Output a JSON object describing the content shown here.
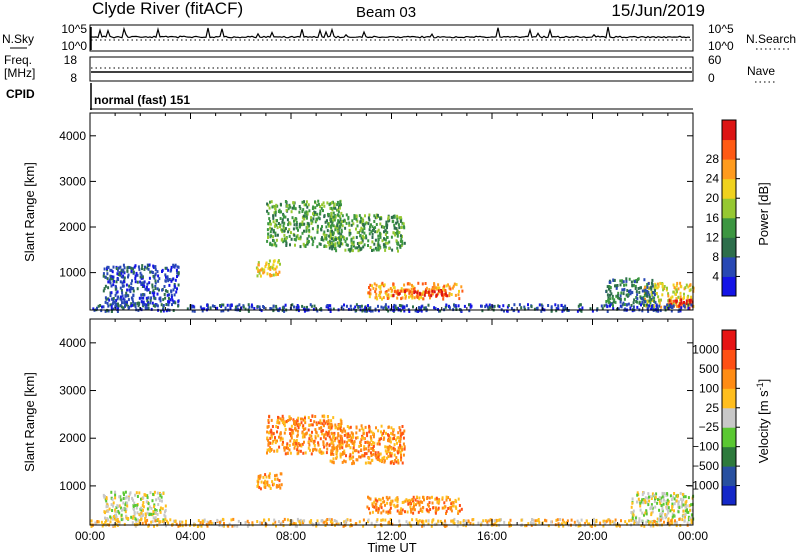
{
  "header": {
    "station": "Clyde River (fitACF)",
    "beam": "Beam 03",
    "date": "15/Jun/2019"
  },
  "nsky_panel": {
    "left_label": "N.Sky",
    "right_label": "N.Search",
    "left_ticks": [
      "10^5",
      "10^0"
    ],
    "right_ticks": [
      "10^5",
      "10^0"
    ]
  },
  "freq_panel": {
    "left_label_1": "Freq.",
    "left_label_2": "[MHz]",
    "right_label": "Nave",
    "left_ticks": [
      "18",
      "8"
    ],
    "right_ticks": [
      "60",
      "0"
    ]
  },
  "cpid_panel": {
    "label": "CPID",
    "mode_text": "normal (fast) 151"
  },
  "chart_data": [
    {
      "type": "heatmap",
      "name": "power",
      "ylabel": "Slant Range [km]",
      "yticks": [
        1000,
        2000,
        3000,
        4000
      ],
      "ylim": [
        180,
        4500
      ],
      "xlim_hours": [
        0,
        24
      ],
      "colorbar_label": "Power [dB]",
      "colorbar_ticks": [
        4,
        8,
        12,
        16,
        20,
        24,
        28
      ],
      "colors": [
        "#1414e6",
        "#2848b4",
        "#2d6e4b",
        "#3c9641",
        "#96c832",
        "#f0d21e",
        "#ff9b1e",
        "#ff5a14",
        "#dc1414"
      ],
      "echoes": [
        {
          "t0": 11.0,
          "t1": 14.8,
          "r0": 450,
          "r1": 800,
          "cls": 6
        },
        {
          "t0": 12.0,
          "t1": 14.2,
          "r0": 520,
          "r1": 650,
          "cls": 8
        },
        {
          "t0": 6.6,
          "t1": 7.6,
          "r0": 950,
          "r1": 1300,
          "cls": 5
        },
        {
          "t0": 9.5,
          "t1": 12.5,
          "r0": 1500,
          "r1": 2300,
          "cls": 3
        },
        {
          "t0": 7.0,
          "t1": 10.0,
          "r0": 1600,
          "r1": 2600,
          "cls": 3
        },
        {
          "t0": 0.5,
          "t1": 3.5,
          "r0": 300,
          "r1": 1200,
          "cls": 1
        },
        {
          "t0": 22.0,
          "t1": 24.0,
          "r0": 250,
          "r1": 800,
          "cls": 5
        },
        {
          "t0": 23.0,
          "t1": 24.0,
          "r0": 250,
          "r1": 450,
          "cls": 8
        },
        {
          "t0": 20.5,
          "t1": 22.5,
          "r0": 300,
          "r1": 900,
          "cls": 2
        },
        {
          "t0": 0.0,
          "t1": 24.0,
          "r0": 180,
          "r1": 330,
          "cls": 1
        }
      ]
    },
    {
      "type": "heatmap",
      "name": "velocity",
      "ylabel": "Slant Range [km]",
      "yticks": [
        1000,
        2000,
        3000,
        4000
      ],
      "ylim": [
        180,
        4500
      ],
      "xlabel": "Time UT",
      "xticks": [
        "00:00",
        "04:00",
        "08:00",
        "12:00",
        "16:00",
        "20:00",
        "00:00"
      ],
      "colorbar_label": "Velocity [m s",
      "colorbar_unit_exponent": "-1",
      "colorbar_label_end": "]",
      "colorbar_ticks": [
        "1000",
        "500",
        "100",
        "25",
        "−25",
        "−100",
        "−500",
        "−1000"
      ],
      "colors": [
        "#1428c8",
        "#2850a0",
        "#2d7a3c",
        "#5ac832",
        "#c8c8c8",
        "#ffbe1e",
        "#ff8c14",
        "#ff5014",
        "#e61414"
      ],
      "echoes": [
        {
          "t0": 11.0,
          "t1": 14.8,
          "r0": 450,
          "r1": 800,
          "cls": 6
        },
        {
          "t0": 6.6,
          "t1": 7.6,
          "r0": 950,
          "r1": 1300,
          "cls": 6
        },
        {
          "t0": 9.5,
          "t1": 12.5,
          "r0": 1500,
          "r1": 2300,
          "cls": 6
        },
        {
          "t0": 7.0,
          "t1": 10.0,
          "r0": 1700,
          "r1": 2500,
          "cls": 6
        },
        {
          "t0": 0.5,
          "t1": 3.0,
          "r0": 300,
          "r1": 900,
          "cls": 4
        },
        {
          "t0": 21.5,
          "t1": 24.0,
          "r0": 250,
          "r1": 900,
          "cls": 4
        },
        {
          "t0": 0.0,
          "t1": 24.0,
          "r0": 180,
          "r1": 330,
          "cls": 5
        }
      ]
    }
  ]
}
